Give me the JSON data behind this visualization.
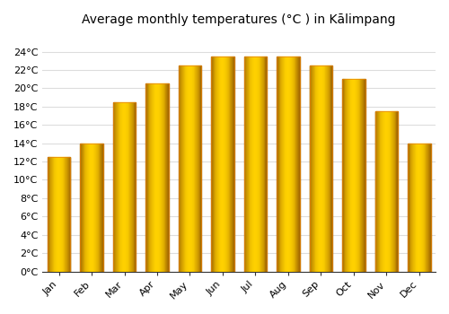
{
  "title": "Average monthly temperatures (°C ) in Kālimpang",
  "months": [
    "Jan",
    "Feb",
    "Mar",
    "Apr",
    "May",
    "Jun",
    "Jul",
    "Aug",
    "Sep",
    "Oct",
    "Nov",
    "Dec"
  ],
  "temperatures": [
    12.5,
    14.0,
    18.5,
    20.5,
    22.5,
    23.5,
    23.5,
    23.5,
    22.5,
    21.0,
    17.5,
    14.0
  ],
  "bar_color_main": "#FFA500",
  "bar_color_light": "#FFD060",
  "bar_color_edge": "#E8820A",
  "ylim": [
    0,
    26
  ],
  "yticks": [
    0,
    2,
    4,
    6,
    8,
    10,
    12,
    14,
    16,
    18,
    20,
    22,
    24
  ],
  "ytick_labels": [
    "0°C",
    "2°C",
    "4°C",
    "6°C",
    "8°C",
    "10°C",
    "12°C",
    "14°C",
    "16°C",
    "18°C",
    "20°C",
    "22°C",
    "24°C"
  ],
  "grid_color": "#dddddd",
  "title_fontsize": 10,
  "tick_fontsize": 8,
  "background_color": "#ffffff"
}
